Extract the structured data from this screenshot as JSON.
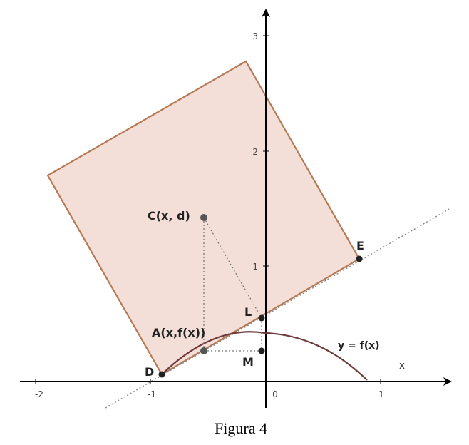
{
  "figure": {
    "x_tick_labels": [
      "-2",
      "-1",
      "0",
      "1"
    ],
    "y_tick_labels": [
      "1",
      "2",
      "3"
    ],
    "x_axis_label": "x",
    "points": {
      "C": "C(x, d)",
      "E": "E",
      "L": "L",
      "A": "A(x,f(x))",
      "M": "M",
      "D": "D"
    },
    "curve_label": "y = f(x)",
    "caption": "Figura 4"
  }
}
